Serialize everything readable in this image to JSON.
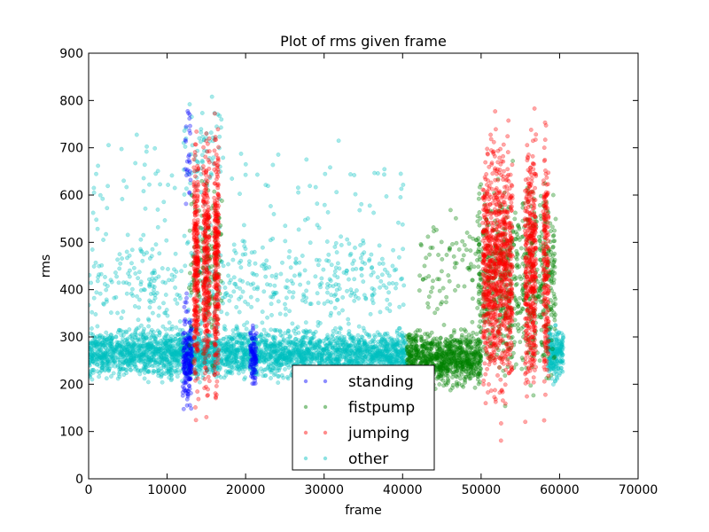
{
  "chart_data": {
    "type": "scatter",
    "title": "Plot of rms given frame",
    "xlabel": "frame",
    "ylabel": "rms",
    "xlim": [
      0,
      70000
    ],
    "ylim": [
      0,
      900
    ],
    "xticks": [
      0,
      10000,
      20000,
      30000,
      40000,
      50000,
      60000,
      70000
    ],
    "yticks": [
      0,
      100,
      200,
      300,
      400,
      500,
      600,
      700,
      800,
      900
    ],
    "grid": false,
    "legend_position": "lower-center",
    "series": [
      {
        "name": "standing",
        "color": "#0000ff",
        "clusters": [
          {
            "x_range": [
              12000,
              13200
            ],
            "y_center": 260,
            "y_spread": 160,
            "density": 180
          },
          {
            "x_range": [
              20600,
              21400
            ],
            "y_center": 260,
            "y_spread": 110,
            "density": 90
          },
          {
            "x_range": [
              12300,
              13000
            ],
            "y_center": 700,
            "y_spread": 200,
            "density": 25
          }
        ]
      },
      {
        "name": "fistpump",
        "color": "#008000",
        "clusters": [
          {
            "x_range": [
              12800,
              17000
            ],
            "y_center": 450,
            "y_spread": 300,
            "density": 140
          },
          {
            "x_range": [
              40500,
              50000
            ],
            "y_center": 255,
            "y_spread": 90,
            "density": 900
          },
          {
            "x_range": [
              49500,
              59500
            ],
            "y_center": 420,
            "y_spread": 320,
            "density": 700
          },
          {
            "x_range": [
              42000,
              50000
            ],
            "y_center": 450,
            "y_spread": 200,
            "density": 80
          }
        ]
      },
      {
        "name": "jumping",
        "color": "#ff0000",
        "clusters": [
          {
            "x_range": [
              13400,
              14000
            ],
            "y_center": 450,
            "y_spread": 420,
            "density": 260
          },
          {
            "x_range": [
              14600,
              15400
            ],
            "y_center": 450,
            "y_spread": 420,
            "density": 280
          },
          {
            "x_range": [
              16000,
              16600
            ],
            "y_center": 450,
            "y_spread": 420,
            "density": 260
          },
          {
            "x_range": [
              50200,
              54000
            ],
            "y_center": 450,
            "y_spread": 420,
            "density": 900
          },
          {
            "x_range": [
              55600,
              57000
            ],
            "y_center": 450,
            "y_spread": 420,
            "density": 420
          },
          {
            "x_range": [
              57900,
              58600
            ],
            "y_center": 450,
            "y_spread": 420,
            "density": 200
          }
        ]
      },
      {
        "name": "other",
        "color": "#00bfbf",
        "clusters": [
          {
            "x_range": [
              0,
              40500
            ],
            "y_center": 265,
            "y_spread": 80,
            "density": 3200
          },
          {
            "x_range": [
              0,
              40500
            ],
            "y_center": 420,
            "y_spread": 180,
            "density": 500
          },
          {
            "x_range": [
              0,
              40500
            ],
            "y_center": 620,
            "y_spread": 160,
            "density": 90
          },
          {
            "x_range": [
              58500,
              60500
            ],
            "y_center": 265,
            "y_spread": 90,
            "density": 220
          },
          {
            "x_range": [
              12000,
              17000
            ],
            "y_center": 700,
            "y_spread": 200,
            "density": 60
          }
        ]
      }
    ]
  }
}
